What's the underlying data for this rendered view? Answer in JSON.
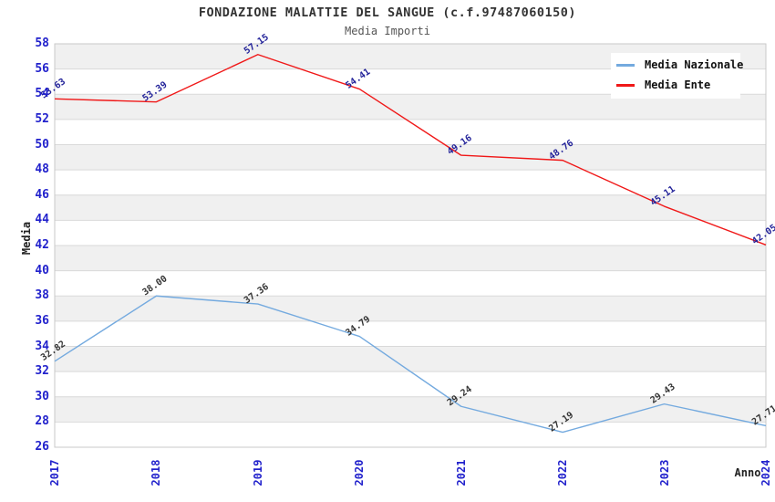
{
  "header": {
    "title": "FONDAZIONE MALATTIE DEL SANGUE (c.f.97487060150)",
    "subtitle": "Media Importi"
  },
  "chart_data": {
    "type": "line",
    "title": "FONDAZIONE MALATTIE DEL SANGUE (c.f.97487060150)",
    "subtitle": "Media Importi",
    "xlabel": "Anno",
    "ylabel": "Media",
    "categories": [
      "2017",
      "2018",
      "2019",
      "2020",
      "2021",
      "2022",
      "2023",
      "2024"
    ],
    "series": [
      {
        "name": "Media Nazionale",
        "color": "#74aadf",
        "label_color": "#333333",
        "values": [
          32.82,
          38.0,
          37.36,
          34.79,
          29.24,
          27.19,
          29.43,
          27.71
        ]
      },
      {
        "name": "Media Ente",
        "color": "#f01818",
        "label_color": "#222299",
        "values": [
          53.63,
          53.39,
          57.15,
          54.41,
          49.16,
          48.76,
          45.11,
          42.05
        ]
      }
    ],
    "ylim": [
      26,
      58
    ],
    "ytick_step": 2,
    "grid": "horizontal-bands",
    "band_colors": [
      "#f0f0f0",
      "#ffffff"
    ],
    "gridline_color": "#d9d9d9",
    "plot_border_color": "#c9c9c9",
    "axis_tick_color": "#2222cc",
    "legend_position": "top-right",
    "legend": [
      "Media Nazionale",
      "Media Ente"
    ]
  }
}
